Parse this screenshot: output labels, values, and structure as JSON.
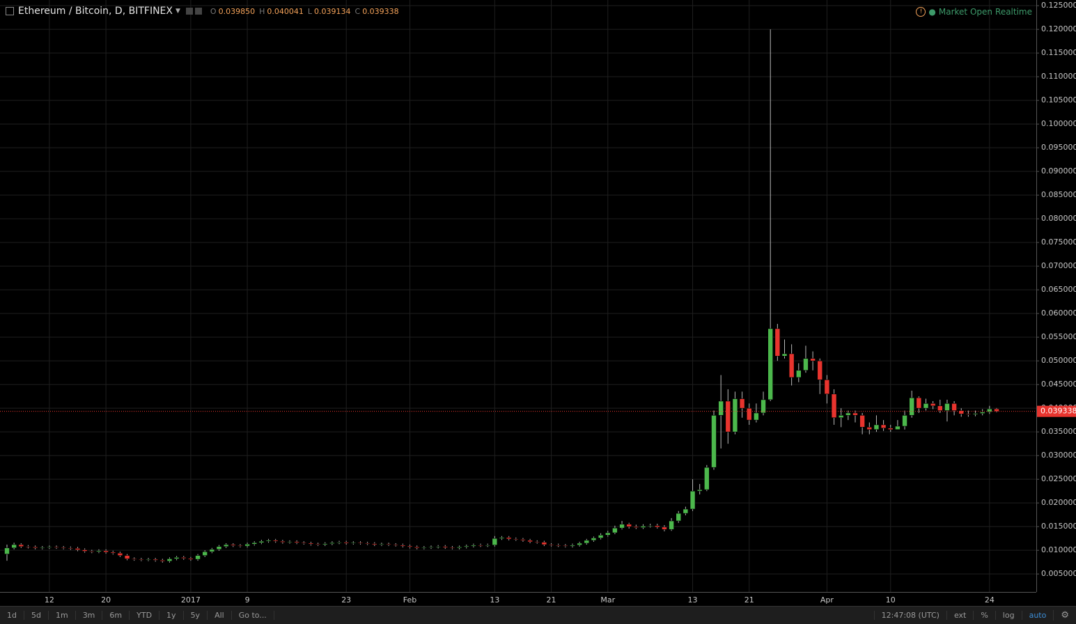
{
  "chart_data": {
    "type": "candlestick",
    "title": "Ethereum / Bitcoin, D, BITFINEX",
    "ohlc_header": [
      {
        "label": "O",
        "value": "0.039850"
      },
      {
        "label": "H",
        "value": "0.040041"
      },
      {
        "label": "L",
        "value": "0.039134"
      },
      {
        "label": "C",
        "value": "0.039338"
      }
    ],
    "up_color": "#4cb84c",
    "down_color": "#e8342e",
    "grid": true,
    "categories": [
      null,
      null,
      null,
      null,
      null,
      null,
      "12",
      null,
      null,
      null,
      null,
      null,
      null,
      null,
      "20",
      null,
      null,
      null,
      null,
      null,
      null,
      null,
      null,
      null,
      null,
      null,
      "2017",
      null,
      null,
      null,
      null,
      null,
      null,
      null,
      "9",
      null,
      null,
      null,
      null,
      null,
      null,
      null,
      null,
      null,
      null,
      null,
      null,
      null,
      "23",
      null,
      null,
      null,
      null,
      null,
      null,
      null,
      null,
      "Feb",
      null,
      null,
      null,
      null,
      null,
      null,
      null,
      null,
      null,
      null,
      null,
      "13",
      null,
      null,
      null,
      null,
      null,
      null,
      null,
      "21",
      null,
      null,
      null,
      null,
      null,
      null,
      null,
      "Mar",
      null,
      null,
      null,
      null,
      null,
      null,
      null,
      null,
      null,
      null,
      null,
      "13",
      null,
      null,
      null,
      null,
      null,
      null,
      null,
      "21",
      null,
      null,
      null,
      null,
      null,
      null,
      null,
      null,
      null,
      null,
      "Apr",
      null,
      null,
      null,
      null,
      null,
      null,
      null,
      null,
      "10",
      null,
      null,
      null,
      null,
      null,
      null,
      null,
      null,
      null,
      null,
      null,
      null,
      null,
      "24",
      null
    ],
    "open": [
      0.0092,
      0.0105,
      0.0112,
      0.0108,
      0.0107,
      0.0105,
      0.0106,
      0.0107,
      0.0106,
      0.0105,
      0.0104,
      0.0101,
      0.0098,
      0.0097,
      0.0099,
      0.0096,
      0.0094,
      0.0089,
      0.0082,
      0.0081,
      0.008,
      0.0081,
      0.0079,
      0.0077,
      0.0082,
      0.0085,
      0.0083,
      0.0081,
      0.0089,
      0.0097,
      0.0102,
      0.0108,
      0.0112,
      0.011,
      0.0109,
      0.0113,
      0.0116,
      0.0119,
      0.0121,
      0.0119,
      0.0117,
      0.0118,
      0.0116,
      0.0115,
      0.0113,
      0.0112,
      0.0114,
      0.0116,
      0.0117,
      0.0115,
      0.0116,
      0.0115,
      0.0114,
      0.0112,
      0.0113,
      0.0112,
      0.0111,
      0.0109,
      0.0107,
      0.0105,
      0.0106,
      0.0107,
      0.0108,
      0.0106,
      0.0105,
      0.0107,
      0.0109,
      0.0111,
      0.011,
      0.0111,
      0.0125,
      0.0127,
      0.0124,
      0.0123,
      0.0121,
      0.0118,
      0.0117,
      0.0112,
      0.0111,
      0.011,
      0.0109,
      0.0111,
      0.0115,
      0.0121,
      0.0126,
      0.0132,
      0.0137,
      0.0147,
      0.0155,
      0.015,
      0.0148,
      0.0151,
      0.0152,
      0.0149,
      0.0144,
      0.0162,
      0.0178,
      0.0187,
      0.0225,
      0.0228,
      0.0275,
      0.0385,
      0.0415,
      0.035,
      0.042,
      0.04,
      0.0375,
      0.039,
      0.0418,
      0.0568,
      0.051,
      0.0515,
      0.0465,
      0.048,
      0.0505,
      0.05,
      0.046,
      0.043,
      0.038,
      0.0385,
      0.039,
      0.0385,
      0.036,
      0.0355,
      0.0365,
      0.0358,
      0.0355,
      0.0362,
      0.0385,
      0.0422,
      0.04,
      0.041,
      0.0405,
      0.0395,
      0.041,
      0.0395,
      0.0388,
      0.0387,
      0.0389,
      0.0392,
      0.03985
    ],
    "high": [
      0.0112,
      0.0116,
      0.0115,
      0.0111,
      0.011,
      0.0109,
      0.011,
      0.011,
      0.0109,
      0.0108,
      0.0107,
      0.0104,
      0.0101,
      0.0102,
      0.0102,
      0.0099,
      0.0097,
      0.0092,
      0.0085,
      0.0084,
      0.0084,
      0.0084,
      0.0082,
      0.0085,
      0.0088,
      0.0088,
      0.0086,
      0.0092,
      0.01,
      0.0105,
      0.0111,
      0.0115,
      0.0115,
      0.0113,
      0.0116,
      0.0119,
      0.0122,
      0.0124,
      0.0124,
      0.0122,
      0.0121,
      0.0121,
      0.0119,
      0.0118,
      0.0116,
      0.0117,
      0.0119,
      0.012,
      0.012,
      0.0119,
      0.0119,
      0.0118,
      0.0117,
      0.0116,
      0.0116,
      0.0115,
      0.0114,
      0.0112,
      0.011,
      0.0109,
      0.011,
      0.0111,
      0.0111,
      0.0109,
      0.011,
      0.0112,
      0.0114,
      0.0114,
      0.0114,
      0.013,
      0.013,
      0.013,
      0.0127,
      0.0126,
      0.0124,
      0.0121,
      0.012,
      0.0115,
      0.0114,
      0.0113,
      0.0114,
      0.0118,
      0.0124,
      0.0129,
      0.0136,
      0.0141,
      0.0152,
      0.0162,
      0.0158,
      0.0154,
      0.0155,
      0.0156,
      0.0156,
      0.0153,
      0.0168,
      0.0183,
      0.0192,
      0.025,
      0.024,
      0.028,
      0.0395,
      0.047,
      0.044,
      0.0435,
      0.0435,
      0.041,
      0.041,
      0.0435,
      0.12,
      0.0578,
      0.0545,
      0.0535,
      0.0495,
      0.0532,
      0.052,
      0.0505,
      0.047,
      0.044,
      0.04,
      0.0395,
      0.0395,
      0.039,
      0.037,
      0.0385,
      0.0375,
      0.0365,
      0.0375,
      0.0395,
      0.0437,
      0.0425,
      0.042,
      0.0415,
      0.0418,
      0.0418,
      0.0415,
      0.04,
      0.0395,
      0.0395,
      0.0398,
      0.0405,
      0.040041
    ],
    "low": [
      0.0078,
      0.0102,
      0.0105,
      0.0104,
      0.0102,
      0.0102,
      0.0103,
      0.0103,
      0.0102,
      0.0101,
      0.0098,
      0.0095,
      0.0094,
      0.0094,
      0.0093,
      0.0091,
      0.0086,
      0.0079,
      0.0078,
      0.0077,
      0.0077,
      0.0076,
      0.0074,
      0.0074,
      0.0079,
      0.008,
      0.0078,
      0.0078,
      0.0086,
      0.0094,
      0.0099,
      0.0105,
      0.0107,
      0.0106,
      0.0106,
      0.011,
      0.0113,
      0.0116,
      0.0116,
      0.0114,
      0.0114,
      0.0113,
      0.0112,
      0.011,
      0.0109,
      0.0109,
      0.0111,
      0.0113,
      0.0112,
      0.0112,
      0.0112,
      0.0111,
      0.0109,
      0.0109,
      0.0109,
      0.0108,
      0.0106,
      0.0104,
      0.0102,
      0.0102,
      0.0103,
      0.0104,
      0.0103,
      0.0102,
      0.0102,
      0.0104,
      0.0106,
      0.0107,
      0.0107,
      0.0108,
      0.0122,
      0.0121,
      0.012,
      0.0118,
      0.0115,
      0.0114,
      0.0109,
      0.0108,
      0.0107,
      0.0106,
      0.0106,
      0.0108,
      0.0112,
      0.0118,
      0.0123,
      0.0129,
      0.0134,
      0.0144,
      0.0146,
      0.0145,
      0.0145,
      0.0148,
      0.0146,
      0.014,
      0.0141,
      0.0158,
      0.0174,
      0.0183,
      0.0218,
      0.0225,
      0.027,
      0.0315,
      0.0325,
      0.0345,
      0.038,
      0.0365,
      0.037,
      0.0385,
      0.0415,
      0.05,
      0.0505,
      0.0448,
      0.0455,
      0.0475,
      0.048,
      0.043,
      0.041,
      0.0365,
      0.036,
      0.0375,
      0.037,
      0.0345,
      0.0345,
      0.035,
      0.0352,
      0.035,
      0.0355,
      0.0355,
      0.038,
      0.039,
      0.0395,
      0.0398,
      0.039,
      0.0372,
      0.0385,
      0.0382,
      0.0382,
      0.0383,
      0.0385,
      0.0388,
      0.039134
    ],
    "close": [
      0.0105,
      0.0112,
      0.0108,
      0.0107,
      0.0105,
      0.0106,
      0.0107,
      0.0106,
      0.0105,
      0.0104,
      0.0101,
      0.0098,
      0.0097,
      0.0099,
      0.0096,
      0.0094,
      0.0089,
      0.0082,
      0.0081,
      0.008,
      0.0081,
      0.0079,
      0.0077,
      0.0082,
      0.0085,
      0.0083,
      0.0081,
      0.0089,
      0.0097,
      0.0102,
      0.0108,
      0.0112,
      0.011,
      0.0109,
      0.0113,
      0.0116,
      0.0119,
      0.0121,
      0.0119,
      0.0117,
      0.0118,
      0.0116,
      0.0115,
      0.0113,
      0.0112,
      0.0114,
      0.0116,
      0.0117,
      0.0115,
      0.0116,
      0.0115,
      0.0114,
      0.0112,
      0.0113,
      0.0112,
      0.0111,
      0.0109,
      0.0107,
      0.0105,
      0.0106,
      0.0107,
      0.0108,
      0.0106,
      0.0105,
      0.0107,
      0.0109,
      0.0111,
      0.011,
      0.0111,
      0.0125,
      0.0127,
      0.0124,
      0.0123,
      0.0121,
      0.0118,
      0.0117,
      0.0112,
      0.0111,
      0.011,
      0.0109,
      0.0111,
      0.0115,
      0.0121,
      0.0126,
      0.0132,
      0.0137,
      0.0147,
      0.0155,
      0.015,
      0.0148,
      0.0151,
      0.0152,
      0.0149,
      0.0144,
      0.0162,
      0.0178,
      0.0187,
      0.0225,
      0.0228,
      0.0275,
      0.0385,
      0.0415,
      0.035,
      0.042,
      0.04,
      0.0375,
      0.039,
      0.0418,
      0.0568,
      0.051,
      0.0515,
      0.0465,
      0.048,
      0.0505,
      0.05,
      0.046,
      0.043,
      0.038,
      0.0385,
      0.039,
      0.0385,
      0.036,
      0.0355,
      0.0365,
      0.0358,
      0.0355,
      0.0362,
      0.0385,
      0.0422,
      0.04,
      0.041,
      0.0405,
      0.0395,
      0.041,
      0.0395,
      0.0388,
      0.0387,
      0.0389,
      0.0392,
      0.03985,
      0.039338
    ],
    "ylim": [
      0.0012,
      0.1262
    ],
    "yticks": [
      {
        "value": 0.005,
        "label": "0.005000"
      },
      {
        "value": 0.01,
        "label": "0.010000"
      },
      {
        "value": 0.015,
        "label": "0.015000"
      },
      {
        "value": 0.02,
        "label": "0.020000"
      },
      {
        "value": 0.025,
        "label": "0.025000"
      },
      {
        "value": 0.03,
        "label": "0.030000"
      },
      {
        "value": 0.035,
        "label": "0.035000"
      },
      {
        "value": 0.04,
        "label": "0.040000"
      },
      {
        "value": 0.045,
        "label": "0.045000"
      },
      {
        "value": 0.05,
        "label": "0.050000"
      },
      {
        "value": 0.055,
        "label": "0.055000"
      },
      {
        "value": 0.06,
        "label": "0.060000"
      },
      {
        "value": 0.065,
        "label": "0.065000"
      },
      {
        "value": 0.07,
        "label": "0.070000"
      },
      {
        "value": 0.075,
        "label": "0.075000"
      },
      {
        "value": 0.08,
        "label": "0.080000"
      },
      {
        "value": 0.085,
        "label": "0.085000"
      },
      {
        "value": 0.09,
        "label": "0.090000"
      },
      {
        "value": 0.095,
        "label": "0.095000"
      },
      {
        "value": 0.1,
        "label": "0.100000"
      },
      {
        "value": 0.105,
        "label": "0.105000"
      },
      {
        "value": 0.11,
        "label": "0.110000"
      },
      {
        "value": 0.115,
        "label": "0.115000"
      },
      {
        "value": 0.12,
        "label": "0.120000"
      },
      {
        "value": 0.125,
        "label": "0.125000"
      }
    ]
  },
  "ui": {
    "market_status": "Market Open",
    "feed": "Realtime",
    "toolbar": [
      "1d",
      "5d",
      "1m",
      "3m",
      "6m",
      "YTD",
      "1y",
      "5y",
      "All",
      "Go to..."
    ],
    "clock": "12:47:08 (UTC)",
    "toolbar_right": [
      "ext",
      "%",
      "log",
      "auto"
    ]
  }
}
